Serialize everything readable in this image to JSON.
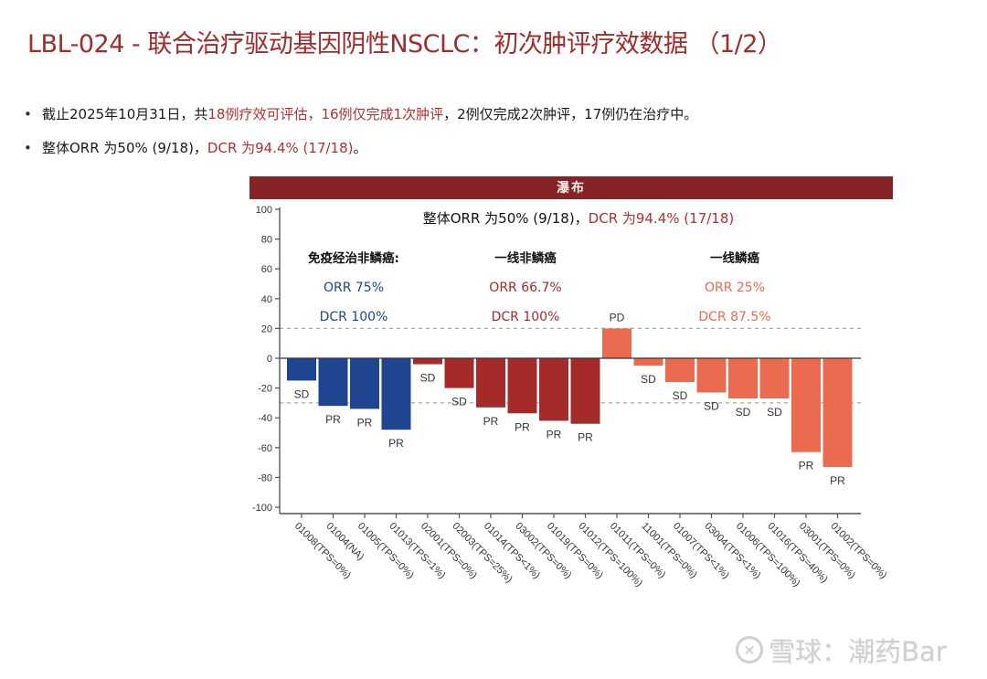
{
  "page": {
    "title": "LBL-024 - 联合治疗驱动基因阴性NSCLC：初次肿评疗效数据 （1/2）",
    "bullets": [
      {
        "segments": [
          {
            "text": "截止2025年10月31日，共",
            "highlight": false
          },
          {
            "text": "18例疗效可评估，16例仅完成1次肿评",
            "highlight": true
          },
          {
            "text": "，2例仅完成2次肿评，17例仍在治疗中。",
            "highlight": false
          }
        ]
      },
      {
        "segments": [
          {
            "text": "整体ORR 为50% (9/18)，",
            "highlight": false
          },
          {
            "text": "DCR 为94.4% (17/18)",
            "highlight": true
          },
          {
            "text": "。",
            "highlight": false
          }
        ]
      }
    ],
    "banner": "瀑布",
    "watermark": {
      "logo": "✕",
      "text": "雪球：潮药Bar"
    }
  },
  "colors": {
    "title_red": "#a02c2c",
    "highlight_red": "#b22f2f",
    "banner_bg": "#862327",
    "group_blue": "#1f4590",
    "group_red": "#a52a2a",
    "group_orange": "#eb6b50"
  },
  "chart_data": {
    "type": "bar",
    "title": "瀑布",
    "xlabel": "",
    "ylabel": "",
    "ylim": [
      -100,
      100
    ],
    "yticks": [
      100,
      80,
      60,
      40,
      20,
      0,
      -20,
      -40,
      -60,
      -80,
      -100
    ],
    "reference_lines": [
      20,
      -30
    ],
    "grid": false,
    "annotation_main": {
      "part1": "整体ORR 为50% (9/18)，",
      "part2": "DCR 为94.4% (17/18)"
    },
    "groups": [
      {
        "name": "免疫经治非鳞癌:",
        "orr": "ORR 75%",
        "dcr": "DCR 100%",
        "color": "#1f4590"
      },
      {
        "name": "一线非鳞癌",
        "orr": "ORR 66.7%",
        "dcr": "DCR 100%",
        "color": "#a52a2a"
      },
      {
        "name": "一线鳞癌",
        "orr": "ORR 25%",
        "dcr": "DCR 87.5%",
        "color": "#eb6b50"
      }
    ],
    "categories": [
      "01008(TPS=0%)",
      "01004(NA)",
      "01005(TPS=0%)",
      "01013(TPS=1%)",
      "02001(TPS=0%)",
      "02003(TPS=25%)",
      "01014(TPS<1%)",
      "03002(TPS=0%)",
      "01019(TPS=0%)",
      "01012(TPS=100%)",
      "01011(TPS=0%)",
      "11001(TPS=0%)",
      "01007(TPS<1%)",
      "03004(TPS<1%)",
      "01006(TPS=100%)",
      "01016(TPS=40%)",
      "03001(TPS=0%)",
      "01002(TPS=0%)"
    ],
    "values": [
      -15,
      -32,
      -34,
      -48,
      -4,
      -20,
      -33,
      -37,
      -42,
      -44,
      20,
      -5,
      -16,
      -23,
      -27,
      -27,
      -63,
      -73
    ],
    "responses": [
      "SD",
      "PR",
      "PR",
      "PR",
      "SD",
      "SD",
      "PR",
      "PR",
      "PR",
      "PR",
      "PD",
      "SD",
      "SD",
      "SD",
      "SD",
      "SD",
      "PR",
      "PR"
    ],
    "group_index": [
      0,
      0,
      0,
      0,
      1,
      1,
      1,
      1,
      1,
      1,
      2,
      2,
      2,
      2,
      2,
      2,
      2,
      2
    ]
  }
}
